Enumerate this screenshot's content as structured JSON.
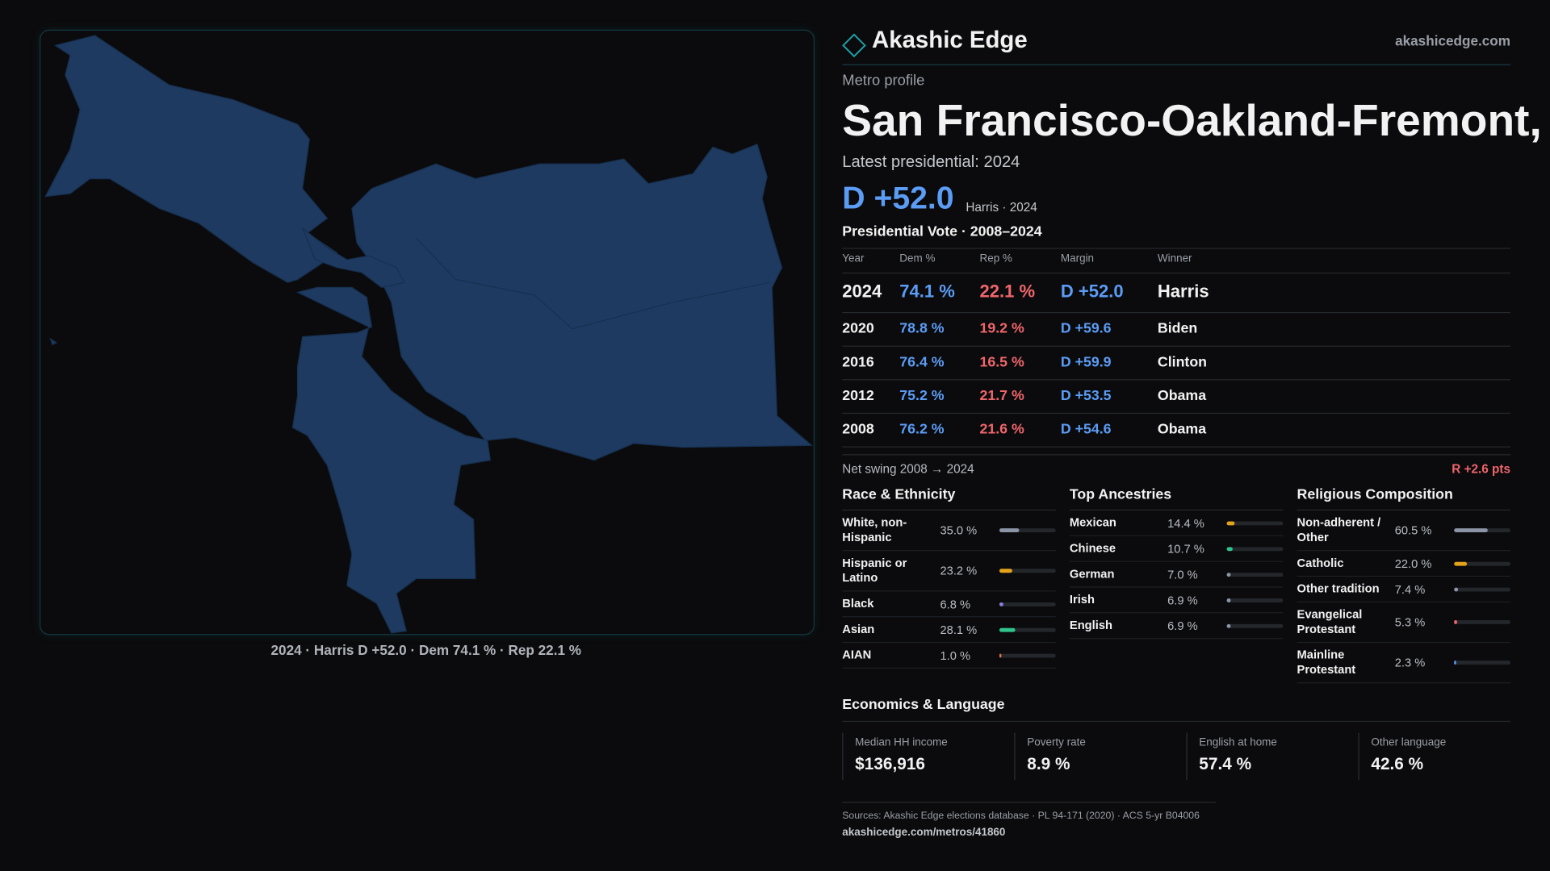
{
  "header": {
    "brand": "Akashic Edge",
    "site": "akashicedge.com"
  },
  "profile": {
    "kicker": "Metro profile",
    "title": "San Francisco-Oakland-Fremont, CA",
    "latest": "Latest presidential: 2024",
    "margin": "D +52.0",
    "margin_note": "Harris · 2024"
  },
  "map": {
    "caption": "2024 · Harris D +52.0 · Dem 74.1 % · Rep 22.1 %"
  },
  "votes": {
    "title": "Presidential Vote · 2008–2024",
    "columns": [
      "Year",
      "Dem %",
      "Rep %",
      "Margin",
      "Winner"
    ],
    "rows": [
      [
        "2024",
        "74.1 %",
        "22.1 %",
        "D +52.0",
        "Harris"
      ],
      [
        "2020",
        "78.8 %",
        "19.2 %",
        "D +59.6",
        "Biden"
      ],
      [
        "2016",
        "76.4 %",
        "16.5 %",
        "D +59.9",
        "Clinton"
      ],
      [
        "2012",
        "75.2 %",
        "21.7 %",
        "D +53.5",
        "Obama"
      ],
      [
        "2008",
        "76.2 %",
        "21.6 %",
        "D +54.6",
        "Obama"
      ]
    ],
    "swing_label": "Net swing 2008 → 2024",
    "swing": "R +2.6 pts"
  },
  "panels": [
    {
      "title": "Race & Ethnicity",
      "rows": [
        {
          "label": "White, non-Hispanic",
          "value": 35.0,
          "value_label": "35.0 %",
          "color": "#8c95a6"
        },
        {
          "label": "Hispanic or Latino",
          "value": 23.2,
          "value_label": "23.2 %",
          "color": "#e3a21a"
        },
        {
          "label": "Black",
          "value": 6.8,
          "value_label": "6.8 %",
          "color": "#8a7fe0"
        },
        {
          "label": "Asian",
          "value": 28.1,
          "value_label": "28.1 %",
          "color": "#2ec48c"
        },
        {
          "label": "AIAN",
          "value": 1.0,
          "value_label": "1.0 %",
          "color": "#e0704a"
        }
      ]
    },
    {
      "title": "Top Ancestries",
      "rows": [
        {
          "label": "Mexican",
          "value": 14.4,
          "value_label": "14.4 %",
          "color": "#e3a21a"
        },
        {
          "label": "Chinese",
          "value": 10.7,
          "value_label": "10.7 %",
          "color": "#2ec48c"
        },
        {
          "label": "German",
          "value": 7.0,
          "value_label": "7.0 %",
          "color": "#8c95a6"
        },
        {
          "label": "Irish",
          "value": 6.9,
          "value_label": "6.9 %",
          "color": "#8c95a6"
        },
        {
          "label": "English",
          "value": 6.9,
          "value_label": "6.9 %",
          "color": "#8c95a6"
        }
      ]
    },
    {
      "title": "Religious Composition",
      "rows": [
        {
          "label": "Non-adherent / Other",
          "value": 60.5,
          "value_label": "60.5 %",
          "color": "#8c95a6"
        },
        {
          "label": "Catholic",
          "value": 22.0,
          "value_label": "22.0 %",
          "color": "#e3a21a"
        },
        {
          "label": "Other tradition",
          "value": 7.4,
          "value_label": "7.4 %",
          "color": "#8c95a6"
        },
        {
          "label": "Evangelical Protestant",
          "value": 5.3,
          "value_label": "5.3 %",
          "color": "#f0666b"
        },
        {
          "label": "Mainline Protestant",
          "value": 2.3,
          "value_label": "2.3 %",
          "color": "#5b9cf5"
        }
      ]
    }
  ],
  "economics": {
    "title": "Economics & Language",
    "cards": [
      {
        "label": "Median HH income",
        "value": "$136,916"
      },
      {
        "label": "Poverty rate",
        "value": "8.9 %"
      },
      {
        "label": "English at home",
        "value": "57.4 %"
      },
      {
        "label": "Other language",
        "value": "42.6 %"
      }
    ]
  },
  "footer": {
    "sources": "Sources: Akashic Edge elections database · PL 94-171 (2020) · ACS 5-yr B04006",
    "url": "akashicedge.com/metros/41860"
  }
}
